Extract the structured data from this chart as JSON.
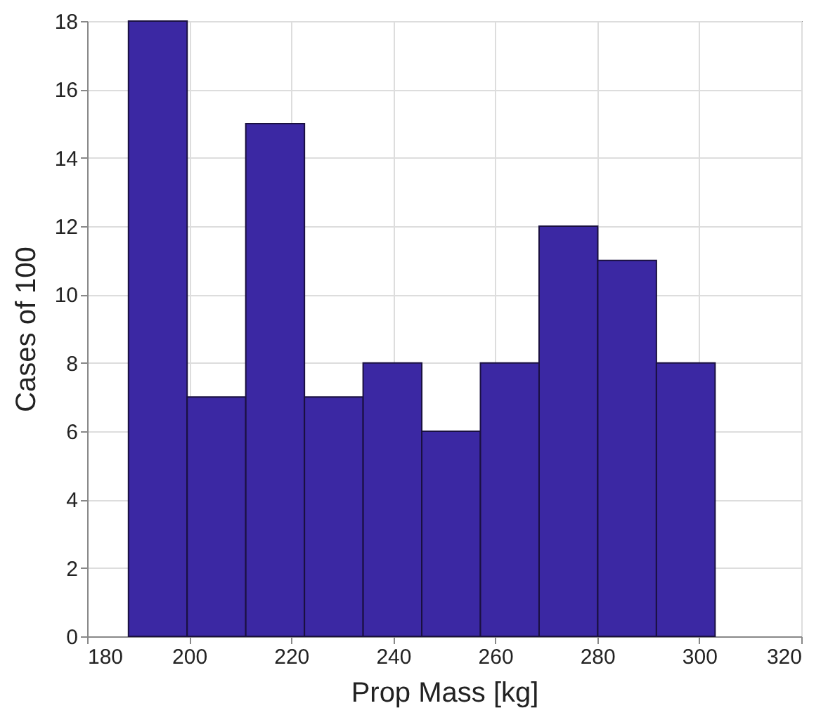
{
  "chart_data": {
    "type": "histogram",
    "xlabel": "Prop Mass [kg]",
    "ylabel": "Cases of 100",
    "bins": [
      188.1,
      199.6,
      211.1,
      222.6,
      234.1,
      245.6,
      257.1,
      268.6,
      280.1,
      291.6,
      303.1
    ],
    "values": [
      18,
      7,
      15,
      7,
      8,
      6,
      8,
      12,
      11,
      8
    ],
    "color": "#3b28a3",
    "xlim": [
      180,
      320
    ],
    "xticks": [
      180,
      200,
      220,
      240,
      260,
      280,
      300,
      320
    ],
    "ylim": [
      0,
      18
    ],
    "yticks": [
      0,
      2,
      4,
      6,
      8,
      10,
      12,
      14,
      16,
      18
    ],
    "grid": true
  }
}
